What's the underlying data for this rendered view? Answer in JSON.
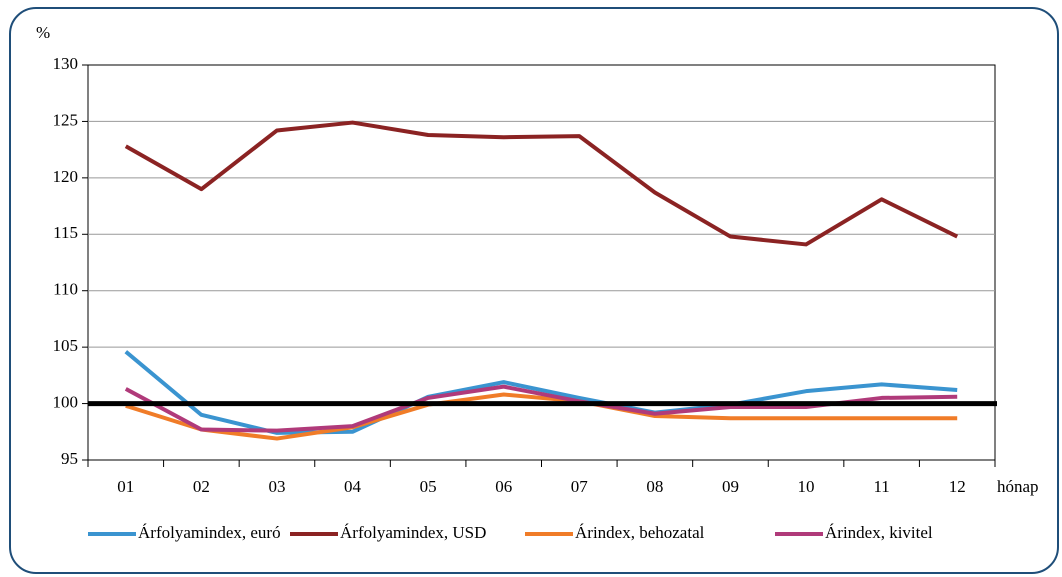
{
  "chart_data": {
    "type": "line",
    "y_label": "%",
    "x_label": "hónap",
    "categories": [
      "01",
      "02",
      "03",
      "04",
      "05",
      "06",
      "07",
      "08",
      "09",
      "10",
      "11",
      "12"
    ],
    "series": [
      {
        "name": "Árfolyamindex, euró",
        "color": "#3a94d0",
        "values": [
          104.6,
          99.0,
          97.4,
          97.5,
          100.6,
          101.9,
          100.5,
          99.2,
          99.9,
          101.1,
          101.7,
          101.2
        ]
      },
      {
        "name": "Árfolyamindex, USD",
        "color": "#8b2323",
        "values": [
          122.8,
          119.0,
          124.2,
          124.9,
          123.8,
          123.6,
          123.7,
          118.7,
          114.8,
          114.1,
          118.1,
          114.8
        ]
      },
      {
        "name": "Árindex, behozatal",
        "color": "#f07c28",
        "values": [
          99.8,
          97.7,
          96.9,
          97.9,
          99.9,
          100.8,
          100.2,
          98.9,
          98.7,
          98.7,
          98.7,
          98.7
        ]
      },
      {
        "name": "Árindex, kivitel",
        "color": "#b03a7a",
        "values": [
          101.3,
          97.7,
          97.6,
          98.0,
          100.5,
          101.5,
          100.2,
          99.1,
          99.7,
          99.7,
          100.5,
          100.6
        ]
      }
    ],
    "reference_line": 100,
    "ylim": [
      95,
      130
    ],
    "yticks": [
      95,
      100,
      105,
      110,
      115,
      120,
      125,
      130
    ],
    "grid": true,
    "legend": "bottom"
  }
}
